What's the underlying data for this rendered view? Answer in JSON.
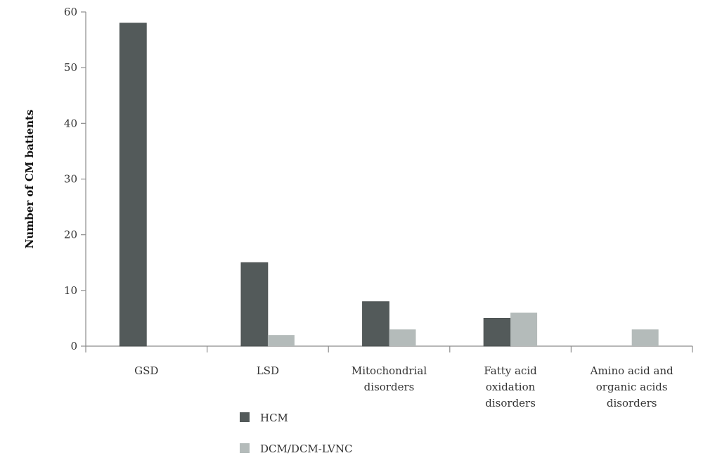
{
  "chart_data": {
    "type": "bar",
    "title": "",
    "xlabel": "",
    "ylabel": "Number of CM batients",
    "ylim": [
      0,
      60
    ],
    "yticks": [
      0,
      10,
      20,
      30,
      40,
      50,
      60
    ],
    "grid": false,
    "legend_position": "bottom-left",
    "categories": [
      [
        "GSD"
      ],
      [
        "LSD"
      ],
      [
        "Mitochondrial",
        "disorders"
      ],
      [
        "Fatty acid",
        "oxidation",
        "disorders"
      ],
      [
        "Amino acid and",
        "organic acids",
        "disorders"
      ]
    ],
    "series": [
      {
        "name": "HCM",
        "color": "#535a5a",
        "values": [
          58,
          15,
          8,
          5,
          0
        ]
      },
      {
        "name": "DCM/DCM-LVNC",
        "color": "#b4bbba",
        "values": [
          0,
          2,
          3,
          6,
          3
        ]
      }
    ]
  },
  "colors": {
    "axis": "#8c8c8c"
  }
}
